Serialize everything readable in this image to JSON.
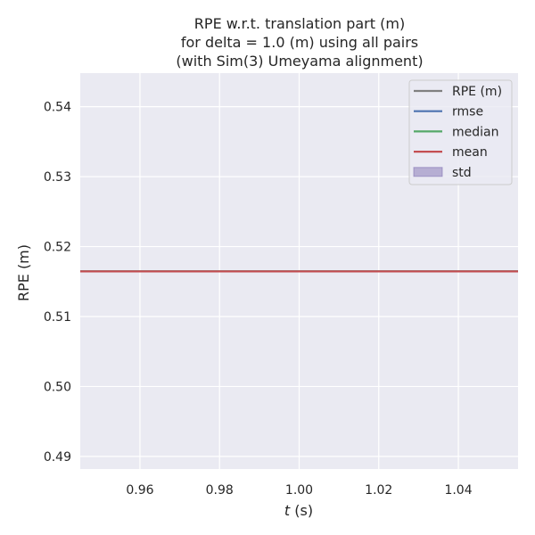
{
  "chart_data": {
    "type": "line",
    "title_lines": [
      "RPE w.r.t. translation part (m)",
      "for delta = 1.0 (m) using all pairs",
      "(with Sim(3) Umeyama alignment)"
    ],
    "xlabel_italic": "t",
    "xlabel_rest": " (s)",
    "ylabel": "RPE (m)",
    "xlim": [
      0.945,
      1.055
    ],
    "ylim": [
      0.4882,
      0.5448
    ],
    "x_ticks": [
      0.96,
      0.98,
      1.0,
      1.02,
      1.04
    ],
    "x_tick_labels": [
      "0.96",
      "0.98",
      "1.00",
      "1.02",
      "1.04"
    ],
    "y_ticks": [
      0.49,
      0.5,
      0.51,
      0.52,
      0.53,
      0.54
    ],
    "y_tick_labels": [
      "0.49",
      "0.50",
      "0.51",
      "0.52",
      "0.53",
      "0.54"
    ],
    "grid": true,
    "legend_position": "top-right",
    "series": [
      {
        "name": "RPE (m)",
        "kind": "line",
        "color": "#808080",
        "x": [
          1.0
        ],
        "y": [
          0.51645
        ]
      },
      {
        "name": "rmse",
        "kind": "hline",
        "color": "#4c72b0",
        "y": 0.51645
      },
      {
        "name": "median",
        "kind": "hline",
        "color": "#55a868",
        "y": 0.51645
      },
      {
        "name": "mean",
        "kind": "hline",
        "color": "#c44e52",
        "y": 0.51645
      },
      {
        "name": "std",
        "kind": "band",
        "color": "#8172b3",
        "y_low": 0.51645,
        "y_high": 0.51645
      }
    ]
  }
}
